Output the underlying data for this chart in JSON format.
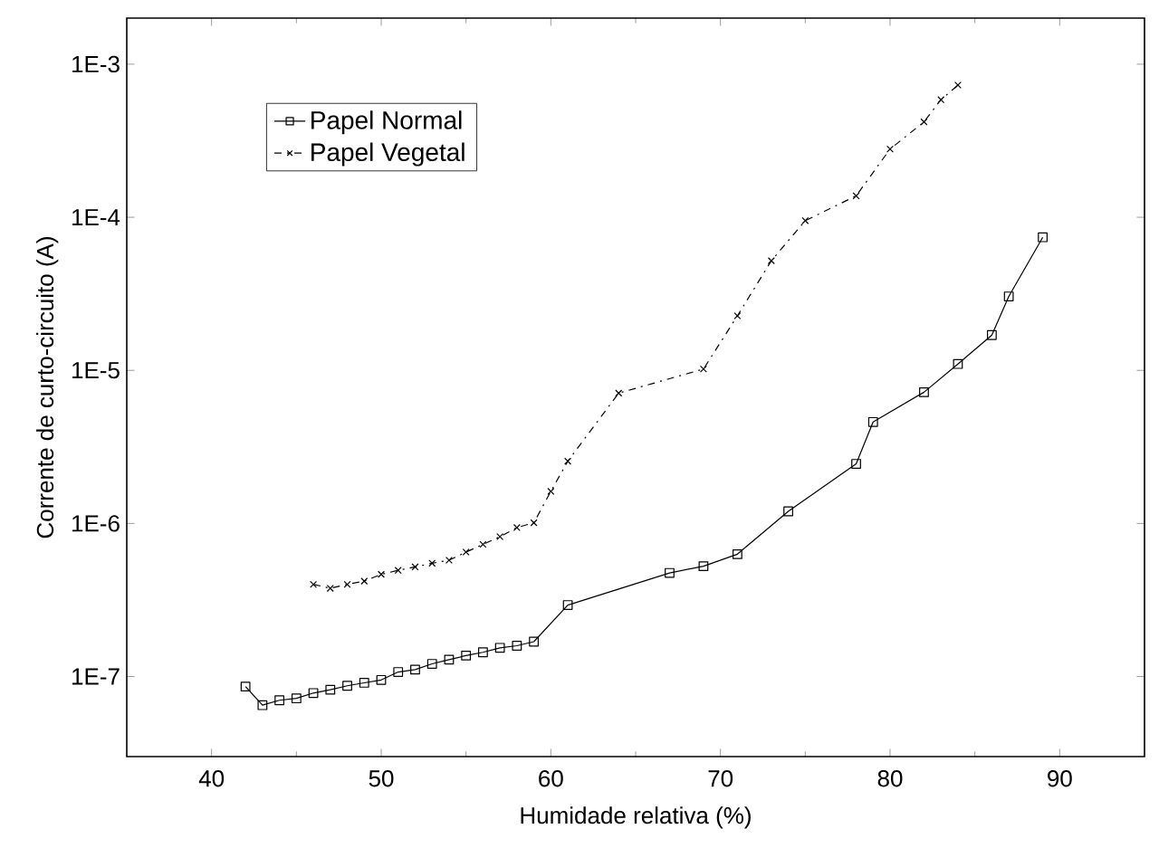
{
  "chart_data": {
    "type": "line",
    "xlabel": "Humidade relativa (%)",
    "ylabel": "Corrente de curto-circuito (A)",
    "log": "y",
    "xlim": [
      35,
      95
    ],
    "xticks": [
      40,
      50,
      60,
      70,
      80,
      90
    ],
    "ylim": [
      3e-08,
      0.002
    ],
    "yticks": [
      {
        "value": 1e-07,
        "label": "1E-7"
      },
      {
        "value": 1e-06,
        "label": "1E-6"
      },
      {
        "value": 1e-05,
        "label": "1E-5"
      },
      {
        "value": 0.0001,
        "label": "1E-4"
      },
      {
        "value": 0.001,
        "label": "1E-3"
      }
    ],
    "legend": "top left",
    "grid": false,
    "series": [
      {
        "name": "Papel Normal",
        "color": "#000000",
        "marker": "square",
        "line_style": "solid",
        "x": [
          42,
          43,
          44,
          45,
          46,
          47,
          48,
          49,
          50,
          51,
          52,
          53,
          54,
          55,
          56,
          57,
          58,
          59,
          61,
          67,
          69,
          71,
          74,
          78,
          79,
          82,
          84,
          86,
          87,
          89
        ],
        "values": [
          8.6e-08,
          6.5e-08,
          7e-08,
          7.2e-08,
          7.8e-08,
          8.2e-08,
          8.7e-08,
          9.1e-08,
          9.5e-08,
          1.07e-07,
          1.11e-07,
          1.21e-07,
          1.29e-07,
          1.37e-07,
          1.44e-07,
          1.54e-07,
          1.59e-07,
          1.69e-07,
          2.93e-07,
          4.75e-07,
          5.26e-07,
          6.3e-07,
          1.2e-06,
          2.45e-06,
          4.6e-06,
          7.2e-06,
          1.1e-05,
          1.7e-05,
          3.04e-05,
          7.4e-05
        ]
      },
      {
        "name": "Papel Vegetal",
        "color": "#000000",
        "marker": "cross",
        "line_style": "dashed",
        "x": [
          46,
          47,
          48,
          49,
          50,
          51,
          52,
          53,
          54,
          55,
          56,
          57,
          58,
          59,
          60,
          61,
          64,
          69,
          71,
          73,
          75,
          78,
          80,
          82,
          83,
          84
        ],
        "values": [
          4e-07,
          3.77e-07,
          4e-07,
          4.2e-07,
          4.65e-07,
          4.94e-07,
          5.2e-07,
          5.5e-07,
          5.75e-07,
          6.5e-07,
          7.3e-07,
          8.2e-07,
          9.4e-07,
          1.01e-06,
          1.62e-06,
          2.55e-06,
          7.1e-06,
          1.02e-05,
          2.27e-05,
          5.2e-05,
          9.5e-05,
          0.000138,
          0.000279,
          0.00042,
          0.000586,
          0.00073
        ]
      }
    ]
  }
}
